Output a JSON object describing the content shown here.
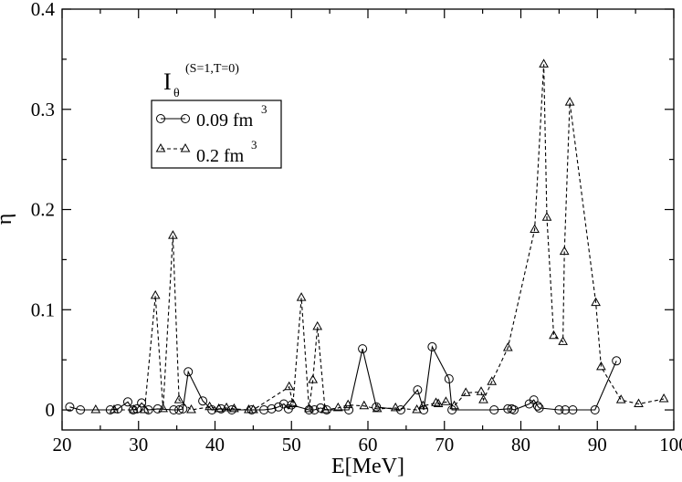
{
  "chart_data": {
    "type": "line",
    "title": "",
    "xlabel": "E[MeV]",
    "ylabel": "η",
    "xlim": [
      20,
      100
    ],
    "ylim": [
      -0.02,
      0.4
    ],
    "xticks": [
      20,
      30,
      40,
      50,
      60,
      70,
      80,
      90,
      100
    ],
    "xtick_labels": [
      "20",
      "30",
      "40",
      "50",
      "60",
      "70",
      "80",
      "90",
      "100"
    ],
    "yticks": [
      0,
      0.1,
      0.2,
      0.3,
      0.4
    ],
    "ytick_labels": [
      "0",
      "0.1",
      "0.2",
      "0.3",
      "0.4"
    ],
    "grid": false,
    "annotation": {
      "main": "I",
      "sub": "θ",
      "sup": "(S=1,T=0)"
    },
    "legend": {
      "position": "upper-left",
      "entries": [
        {
          "label": "0.09 fm",
          "sup": "3"
        },
        {
          "label": "0.2 fm",
          "sup": "3"
        }
      ]
    },
    "series": [
      {
        "name": "0.09 fm3",
        "marker": "circle",
        "linestyle": "solid",
        "x": [
          21.0,
          22.4,
          26.3,
          27.3,
          28.6,
          29.3,
          29.8,
          30.4,
          31.3,
          32.5,
          34.6,
          35.3,
          35.8,
          36.5,
          38.4,
          39.6,
          40.8,
          42.2,
          44.8,
          46.4,
          47.4,
          48.3,
          49.0,
          49.6,
          50.0,
          52.3,
          53.0,
          53.8,
          54.6,
          57.5,
          59.3,
          61.1,
          64.3,
          66.5,
          67.3,
          68.4,
          70.6,
          71.0,
          76.5,
          78.3,
          78.8,
          79.1,
          81.1,
          81.7,
          82.2,
          82.4,
          85.0,
          85.8,
          86.8,
          89.7,
          92.5
        ],
        "y": [
          0.003,
          0.0,
          0.0,
          0.001,
          0.008,
          0.0,
          0.001,
          0.007,
          0.0,
          0.001,
          0.0,
          0.0,
          0.001,
          0.038,
          0.009,
          0.0,
          0.001,
          0.0,
          0.0,
          0.0,
          0.001,
          0.003,
          0.006,
          0.001,
          0.005,
          0.0,
          0.0,
          0.002,
          0.0,
          0.0,
          0.061,
          0.003,
          0.0,
          0.02,
          0.0,
          0.063,
          0.031,
          0.0,
          0.0,
          0.001,
          0.001,
          0.0,
          0.006,
          0.01,
          0.004,
          0.002,
          0.0,
          0.0,
          0.0,
          0.0,
          0.049
        ]
      },
      {
        "name": "0.2 fm3",
        "marker": "triangle",
        "linestyle": "dashed",
        "x": [
          24.4,
          26.8,
          29.4,
          30.8,
          32.2,
          33.2,
          34.5,
          35.3,
          36.9,
          39.3,
          40.5,
          41.5,
          42.5,
          44.4,
          45.0,
          49.7,
          50.2,
          51.3,
          52.3,
          52.8,
          53.4,
          54.4,
          56.1,
          57.4,
          59.5,
          61.2,
          63.6,
          66.4,
          67.2,
          68.9,
          69.2,
          70.2,
          71.3,
          72.8,
          74.8,
          75.1,
          76.2,
          78.3,
          81.8,
          83.0,
          83.4,
          84.3,
          85.5,
          85.7,
          86.4,
          89.8,
          90.5,
          93.1,
          95.4,
          98.7
        ],
        "y": [
          0.0,
          0.0,
          0.0,
          0.0,
          0.114,
          0.001,
          0.174,
          0.01,
          0.0,
          0.003,
          0.001,
          0.002,
          0.001,
          0.0,
          0.0,
          0.023,
          0.006,
          0.112,
          0.001,
          0.03,
          0.083,
          0.0,
          0.002,
          0.005,
          0.004,
          0.001,
          0.002,
          0.0,
          0.004,
          0.007,
          0.006,
          0.008,
          0.004,
          0.017,
          0.018,
          0.01,
          0.028,
          0.062,
          0.18,
          0.345,
          0.192,
          0.074,
          0.068,
          0.158,
          0.307,
          0.107,
          0.043,
          0.01,
          0.006,
          0.011
        ]
      }
    ]
  }
}
